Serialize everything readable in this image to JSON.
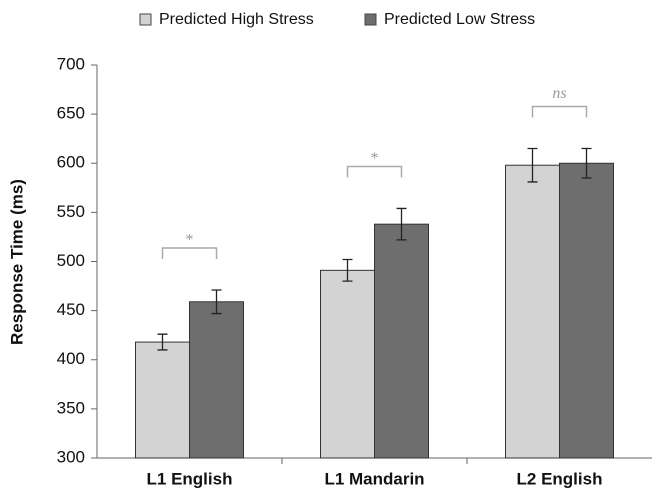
{
  "chart_data": {
    "type": "bar",
    "y_label": "Response Time (ms)",
    "categories": [
      "L1 English",
      "L1 Mandarin",
      "L2 English"
    ],
    "series": [
      {
        "name": "Predicted High Stress",
        "color": "#d3d3d3",
        "values": [
          418,
          491,
          598
        ],
        "errors": [
          8,
          11,
          17
        ]
      },
      {
        "name": "Predicted Low Stress",
        "color": "#6e6e6e",
        "values": [
          459,
          538,
          600
        ],
        "errors": [
          12,
          16,
          15
        ]
      }
    ],
    "significance": [
      "*",
      "*",
      "ns"
    ],
    "ylim": [
      300,
      700
    ],
    "yticks": [
      300,
      350,
      400,
      450,
      500,
      550,
      600,
      650,
      700
    ],
    "legend": "top"
  }
}
